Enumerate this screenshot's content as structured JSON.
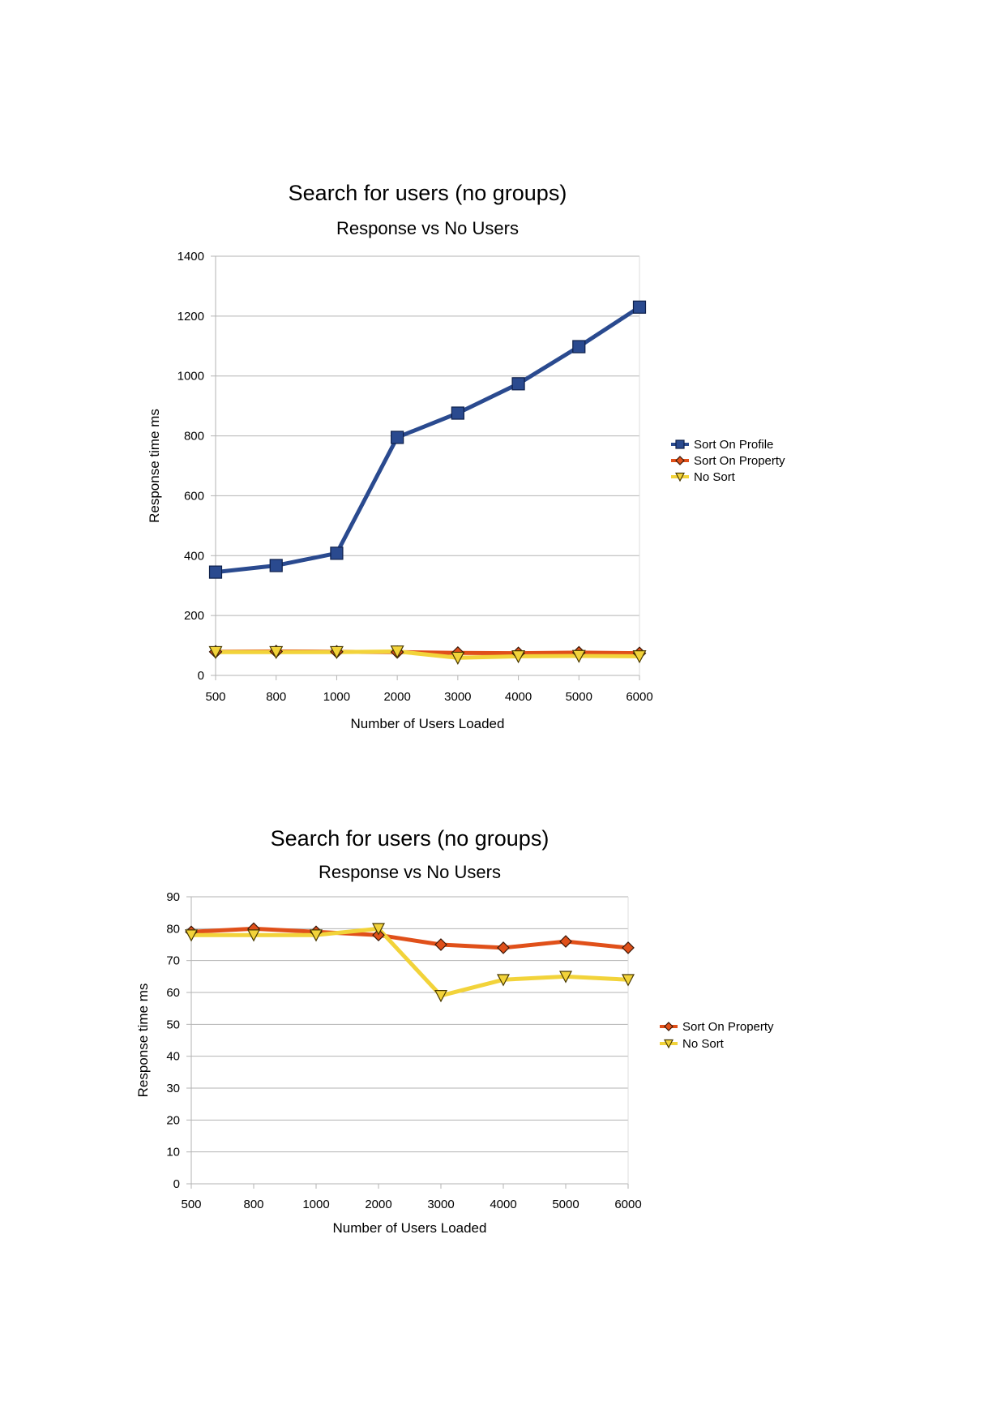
{
  "chart_data": [
    {
      "type": "line",
      "title": "Search for users (no groups)",
      "subtitle": "Response vs No Users",
      "xlabel": "Number of Users Loaded",
      "ylabel": "Response time ms",
      "categories": [
        "500",
        "800",
        "1000",
        "2000",
        "3000",
        "4000",
        "5000",
        "6000"
      ],
      "ylim": [
        0,
        1400
      ],
      "yticks": [
        0,
        200,
        400,
        600,
        800,
        1000,
        1200,
        1400
      ],
      "grid": true,
      "legend_position": "right",
      "series": [
        {
          "name": "Sort On Profile",
          "color": "#2a4a8f",
          "marker": "square",
          "values": [
            345,
            367,
            408,
            795,
            876,
            974,
            1098,
            1230
          ]
        },
        {
          "name": "Sort On Property",
          "color": "#e0501a",
          "marker": "diamond",
          "values": [
            79,
            80,
            79,
            78,
            75,
            74,
            76,
            74
          ]
        },
        {
          "name": "No Sort",
          "color": "#f2d33a",
          "marker": "triangle-down",
          "values": [
            78,
            78,
            78,
            80,
            59,
            64,
            65,
            64
          ]
        }
      ]
    },
    {
      "type": "line",
      "title": "Search for users (no groups)",
      "subtitle": "Response vs No Users",
      "xlabel": "Number of Users Loaded",
      "ylabel": "Response time ms",
      "categories": [
        "500",
        "800",
        "1000",
        "2000",
        "3000",
        "4000",
        "5000",
        "6000"
      ],
      "ylim": [
        0,
        90
      ],
      "yticks": [
        0,
        10,
        20,
        30,
        40,
        50,
        60,
        70,
        80,
        90
      ],
      "grid": true,
      "legend_position": "right",
      "series": [
        {
          "name": "Sort On Property",
          "color": "#e0501a",
          "marker": "diamond",
          "values": [
            79,
            80,
            79,
            78,
            75,
            74,
            76,
            74
          ]
        },
        {
          "name": "No Sort",
          "color": "#f2d33a",
          "marker": "triangle-down",
          "values": [
            78,
            78,
            78,
            80,
            59,
            64,
            65,
            64
          ]
        }
      ]
    }
  ]
}
